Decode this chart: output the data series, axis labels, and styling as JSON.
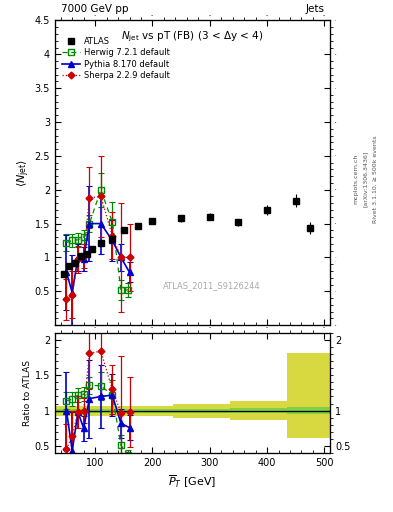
{
  "atlas_x": [
    45,
    55,
    65,
    75,
    85,
    95,
    110,
    130,
    150,
    175,
    200,
    250,
    300,
    350,
    400,
    450,
    475
  ],
  "atlas_y": [
    0.75,
    0.87,
    0.92,
    1.02,
    1.05,
    1.12,
    1.22,
    1.27,
    1.4,
    1.47,
    1.54,
    1.58,
    1.6,
    1.52,
    1.7,
    1.84,
    1.43
  ],
  "atlas_yerr_lo": [
    0.04,
    0.03,
    0.02,
    0.02,
    0.02,
    0.02,
    0.03,
    0.04,
    0.04,
    0.04,
    0.04,
    0.05,
    0.05,
    0.05,
    0.07,
    0.09,
    0.09
  ],
  "atlas_yerr_hi": [
    0.04,
    0.03,
    0.02,
    0.02,
    0.02,
    0.02,
    0.03,
    0.04,
    0.04,
    0.04,
    0.04,
    0.05,
    0.05,
    0.05,
    0.07,
    0.09,
    0.09
  ],
  "herwig_x": [
    50,
    60,
    70,
    80,
    90,
    110,
    130,
    145,
    158
  ],
  "herwig_y": [
    1.22,
    1.25,
    1.26,
    1.3,
    1.5,
    2.0,
    1.52,
    0.52,
    0.52
  ],
  "herwig_yerr": [
    0.12,
    0.1,
    0.1,
    0.1,
    0.12,
    0.25,
    0.3,
    0.15,
    0.1
  ],
  "pythia_x": [
    50,
    60,
    70,
    80,
    90,
    110,
    130,
    145,
    160
  ],
  "pythia_y": [
    0.78,
    0.48,
    1.0,
    0.98,
    1.5,
    1.5,
    1.25,
    1.0,
    0.78
  ],
  "pythia_yerr": [
    0.55,
    0.55,
    0.2,
    0.18,
    0.55,
    0.45,
    0.3,
    0.2,
    0.15
  ],
  "sherpa_x": [
    50,
    60,
    70,
    80,
    90,
    110,
    130,
    145,
    160
  ],
  "sherpa_y": [
    0.38,
    0.45,
    0.97,
    1.02,
    1.88,
    1.9,
    1.32,
    1.0,
    1.0
  ],
  "sherpa_yerr": [
    0.3,
    0.35,
    0.2,
    0.18,
    0.45,
    0.6,
    0.35,
    0.8,
    0.5
  ],
  "ratio_herwig_x": [
    50,
    60,
    70,
    80,
    90,
    110,
    130,
    145,
    158
  ],
  "ratio_herwig_y": [
    1.14,
    1.16,
    1.22,
    1.23,
    1.36,
    1.35,
    1.22,
    0.51,
    0.37
  ],
  "ratio_herwig_yerr": [
    0.12,
    0.1,
    0.1,
    0.1,
    0.12,
    0.2,
    0.22,
    0.15,
    0.08
  ],
  "ratio_pythia_x": [
    50,
    60,
    70,
    80,
    90,
    110,
    130,
    145,
    160
  ],
  "ratio_pythia_y": [
    1.0,
    0.43,
    0.98,
    0.75,
    1.17,
    1.2,
    1.22,
    0.82,
    0.76
  ],
  "ratio_pythia_yerr": [
    0.55,
    0.55,
    0.22,
    0.18,
    0.55,
    0.45,
    0.3,
    0.2,
    0.18
  ],
  "ratio_sherpa_x": [
    50,
    60,
    70,
    80,
    90,
    110,
    130,
    145,
    160
  ],
  "ratio_sherpa_y": [
    0.46,
    0.64,
    0.98,
    1.0,
    1.81,
    1.84,
    1.3,
    0.97,
    0.98
  ],
  "ratio_sherpa_yerr": [
    0.35,
    0.35,
    0.22,
    0.18,
    0.5,
    0.62,
    0.35,
    0.8,
    0.5
  ],
  "band_edges": [
    30,
    75,
    135,
    235,
    335,
    435,
    510
  ],
  "green_lo": [
    0.97,
    0.97,
    0.97,
    0.97,
    0.96,
    0.95
  ],
  "green_hi": [
    1.03,
    1.03,
    1.03,
    1.03,
    1.04,
    1.05
  ],
  "yellow_lo": [
    0.93,
    0.93,
    0.93,
    0.9,
    0.87,
    0.62
  ],
  "yellow_hi": [
    1.07,
    1.07,
    1.07,
    1.1,
    1.13,
    1.82
  ],
  "ylim_main": [
    0.0,
    4.5
  ],
  "ylim_ratio": [
    0.4,
    2.1
  ],
  "xlim": [
    30,
    510
  ],
  "color_atlas": "#000000",
  "color_herwig": "#008800",
  "color_pythia": "#0000cc",
  "color_sherpa": "#cc0000",
  "color_band_green": "#44cc44",
  "color_band_yellow": "#cccc00",
  "bg_color": "#ffffff"
}
